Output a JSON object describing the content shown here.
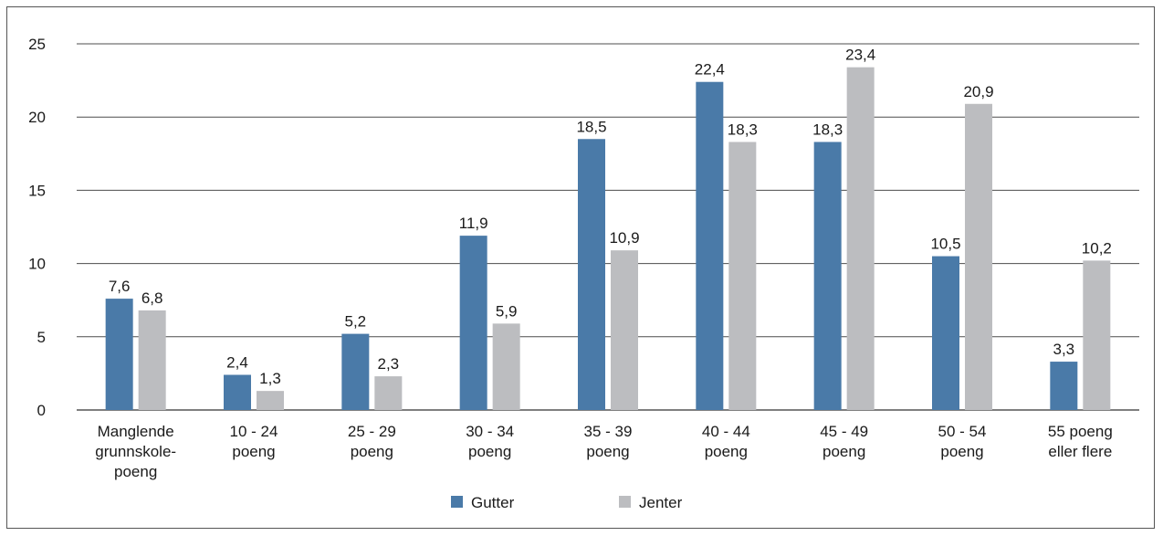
{
  "chart_data": {
    "type": "bar",
    "categories": [
      [
        "Manglende",
        "grunnskole-",
        "poeng"
      ],
      [
        "10 - 24",
        "poeng"
      ],
      [
        "25 - 29",
        "poeng"
      ],
      [
        "30 - 34",
        "poeng"
      ],
      [
        "35 - 39",
        "poeng"
      ],
      [
        "40 - 44",
        "poeng"
      ],
      [
        "45 - 49",
        "poeng"
      ],
      [
        "50 - 54",
        "poeng"
      ],
      [
        "55 poeng",
        "eller flere"
      ]
    ],
    "series": [
      {
        "name": "Gutter",
        "color": "#4a7aa8",
        "values": [
          7.6,
          2.4,
          5.2,
          11.9,
          18.5,
          22.4,
          18.3,
          10.5,
          3.3
        ],
        "labels": [
          "7,6",
          "2,4",
          "5,2",
          "11,9",
          "18,5",
          "22,4",
          "18,3",
          "10,5",
          "3,3"
        ]
      },
      {
        "name": "Jenter",
        "color": "#bcbdc0",
        "values": [
          6.8,
          1.3,
          2.3,
          5.9,
          10.9,
          18.3,
          23.4,
          20.9,
          10.2
        ],
        "labels": [
          "6,8",
          "1,3",
          "2,3",
          "5,9",
          "10,9",
          "18,3",
          "23,4",
          "20,9",
          "10,2"
        ]
      }
    ],
    "yticks": [
      "0",
      "5",
      "10",
      "15",
      "20",
      "25"
    ],
    "ylim": [
      0,
      25
    ],
    "grid": true,
    "legend_position": "bottom"
  }
}
